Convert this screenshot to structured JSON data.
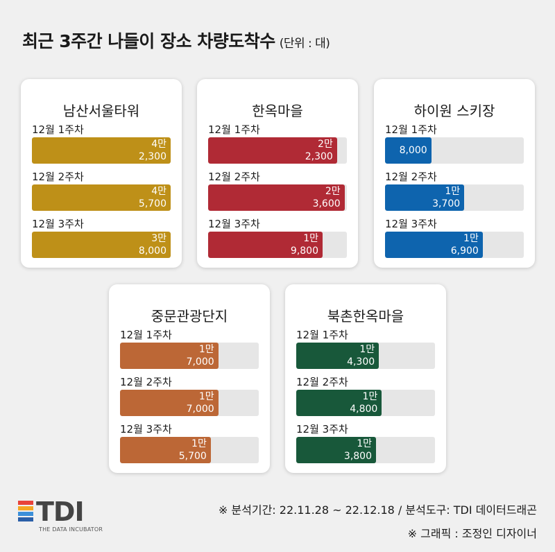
{
  "title": "최근 3주간 나들이 장소 차량도착수",
  "unit_label": "(단위 : 대)",
  "chart_data": {
    "type": "bar",
    "unit": "대",
    "categories": [
      "12월 1주차",
      "12월 2주차",
      "12월 3주차"
    ],
    "max_value": 24000,
    "series": [
      {
        "name": "남산서울타워",
        "color": "#be9018",
        "values": [
          42300,
          45700,
          38000
        ],
        "labels": [
          [
            "4만",
            "2,300"
          ],
          [
            "4만",
            "5,700"
          ],
          [
            "3만",
            "8,000"
          ]
        ]
      },
      {
        "name": "한옥마을",
        "color": "#b02a35",
        "values": [
          22300,
          23600,
          19800
        ],
        "labels": [
          [
            "2만",
            "2,300"
          ],
          [
            "2만",
            "3,600"
          ],
          [
            "1만",
            "9,800"
          ]
        ]
      },
      {
        "name": "하이원 스키장",
        "color": "#0e64ae",
        "values": [
          8000,
          13700,
          16900
        ],
        "labels": [
          [
            "8,000"
          ],
          [
            "1만",
            "3,700"
          ],
          [
            "1만",
            "6,900"
          ]
        ]
      },
      {
        "name": "중문관광단지",
        "color": "#bc6736",
        "values": [
          17000,
          17000,
          15700
        ],
        "labels": [
          [
            "1만",
            "7,000"
          ],
          [
            "1만",
            "7,000"
          ],
          [
            "1만",
            "5,700"
          ]
        ]
      },
      {
        "name": "북촌한옥마을",
        "color": "#18583a",
        "values": [
          14300,
          14800,
          13800
        ],
        "labels": [
          [
            "1만",
            "4,300"
          ],
          [
            "1만",
            "4,800"
          ],
          [
            "1만",
            "3,800"
          ]
        ]
      }
    ]
  },
  "logo": {
    "text": "TDI",
    "subtitle": "THE DATA INCUBATOR",
    "stripe_colors": [
      "#e8433a",
      "#f5a623",
      "#3b8fd9",
      "#2a5fa8"
    ]
  },
  "footer": {
    "source": "※ 분석기간: 22.11.28 ~ 22.12.18 / 분석도구: TDI 데이터드래곤",
    "credit": "※ 그래픽 : 조정인 디자이너"
  }
}
